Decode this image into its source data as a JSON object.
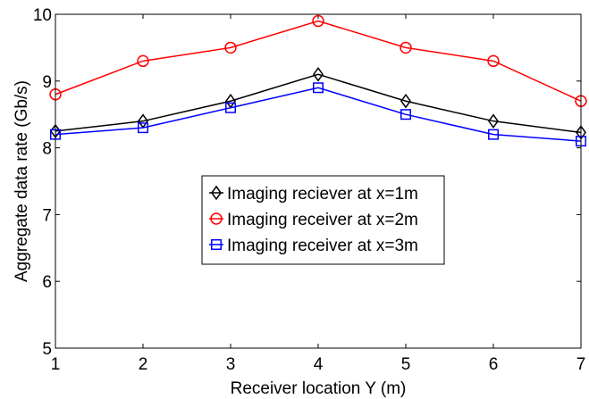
{
  "chart_data": {
    "type": "line",
    "title": "",
    "xlabel": "Receiver location Y (m)",
    "ylabel": "Aggregate data rate (Gb/s)",
    "x": [
      1,
      2,
      3,
      4,
      5,
      6,
      7
    ],
    "xlim": [
      1,
      7
    ],
    "ylim": [
      5,
      10
    ],
    "xticks": [
      "1",
      "2",
      "3",
      "4",
      "5",
      "6",
      "7"
    ],
    "yticks": [
      "5",
      "6",
      "7",
      "8",
      "9",
      "10"
    ],
    "grid": false,
    "legend_position": "center",
    "series": [
      {
        "name": "Imaging reciever at x=1m",
        "color": "#000000",
        "marker": "diamond",
        "values": [
          8.25,
          8.4,
          8.7,
          9.1,
          8.7,
          8.4,
          8.23
        ]
      },
      {
        "name": "Imaging receiver at x=2m",
        "color": "#ff0000",
        "marker": "circle",
        "values": [
          8.8,
          9.3,
          9.5,
          9.9,
          9.5,
          9.3,
          8.7
        ]
      },
      {
        "name": "Imaging receiver at x=3m",
        "color": "#0000ff",
        "marker": "square",
        "values": [
          8.2,
          8.3,
          8.6,
          8.9,
          8.5,
          8.2,
          8.1
        ]
      }
    ]
  }
}
